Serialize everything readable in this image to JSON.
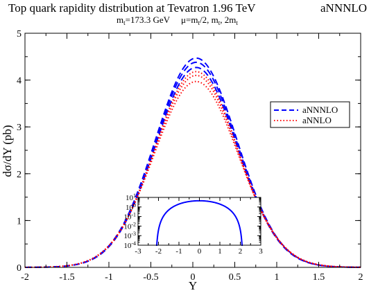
{
  "chart_data": [
    {
      "type": "line",
      "title": "Top quark rapidity distribution at Tevatron 1.96 TeV",
      "title_tag": "aNNNLO",
      "subtitle_mass": "m",
      "subtitle_mass_sub": "t",
      "subtitle_mass_value": "=173.3 GeV",
      "subtitle_scale": "μ=m",
      "subtitle_scale_sub1": "t",
      "subtitle_scale_mid1": "/2, m",
      "subtitle_scale_sub2": "t",
      "subtitle_scale_mid2": ", 2m",
      "subtitle_scale_sub3": "t",
      "xlabel": "Y",
      "ylabel": "dσ/dY (pb)",
      "xlim": [
        -2,
        2
      ],
      "ylim": [
        0,
        5
      ],
      "x_ticks": [
        "-2",
        "-1.5",
        "-1",
        "-0.5",
        "0",
        "0.5",
        "1",
        "1.5",
        "2"
      ],
      "y_ticks": [
        "0",
        "1",
        "2",
        "3",
        "4",
        "5"
      ],
      "legend": {
        "placement": "right",
        "entries": [
          {
            "label": "aNNNLO",
            "color": "#0000ff",
            "style": "dashed"
          },
          {
            "label": "aNNLO",
            "color": "#ff0000",
            "style": "dotted"
          }
        ]
      },
      "series": [
        {
          "legend": "aNNNLO",
          "color": "#0000ff",
          "style": "dashed",
          "peak": 4.47,
          "center": 0.04,
          "width": 0.69
        },
        {
          "color": "#0000ff",
          "style": "dashed",
          "peak": 4.38,
          "center": 0.04,
          "width": 0.69
        },
        {
          "color": "#0000ff",
          "style": "dashed",
          "peak": 4.27,
          "center": 0.04,
          "width": 0.69
        },
        {
          "legend": "aNNLO",
          "color": "#ff0000",
          "style": "dotted",
          "peak": 4.18,
          "center": 0.04,
          "width": 0.7
        },
        {
          "color": "#ff0000",
          "style": "dotted",
          "peak": 4.1,
          "center": 0.04,
          "width": 0.7
        },
        {
          "color": "#ff0000",
          "style": "dotted",
          "peak": 3.97,
          "center": 0.04,
          "width": 0.71
        }
      ]
    },
    {
      "type": "line",
      "role": "inset",
      "yscale": "log",
      "xlim": [
        -3,
        3
      ],
      "ylim_exp": [
        -4,
        1
      ],
      "x_ticks": [
        "-3",
        "-2",
        "-1",
        "0",
        "1",
        "2",
        "3"
      ],
      "y_tick_base": "10",
      "y_tick_exponents": [
        "1",
        "0",
        "-1",
        "-2",
        "-3",
        "-4"
      ],
      "series": [
        {
          "color": "#0000ff",
          "style": "solid",
          "edge": 2.12,
          "peak": 4.47
        }
      ]
    }
  ]
}
